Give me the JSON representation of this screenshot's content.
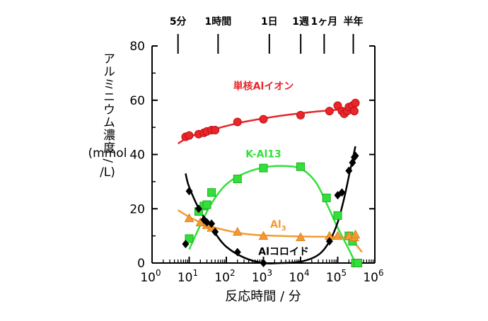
{
  "chart_data": {
    "type": "scatter",
    "xlabel": "反応時間 / 分",
    "ylabel_lines": [
      "アルミニウム濃度 /",
      "(mmol",
      "/L)"
    ],
    "x_scale": "log",
    "xlim": [
      1,
      1000000
    ],
    "ylim": [
      0,
      80
    ],
    "y_ticks": [
      "0",
      "20",
      "40",
      "60",
      "80"
    ],
    "x_ticks": [
      {
        "base": "10",
        "exp": "0"
      },
      {
        "base": "10",
        "exp": "1"
      },
      {
        "base": "10",
        "exp": "2"
      },
      {
        "base": "10",
        "exp": "3"
      },
      {
        "base": "10",
        "exp": "4"
      },
      {
        "base": "10",
        "exp": "5"
      },
      {
        "base": "10",
        "exp": "6"
      }
    ],
    "top_markers": [
      {
        "label": "5分",
        "x": 5
      },
      {
        "label": "1時間",
        "x": 60
      },
      {
        "label": "1日",
        "x": 1440
      },
      {
        "label": "1週",
        "x": 10080
      },
      {
        "label": "1ヶ月",
        "x": 43200
      },
      {
        "label": "半年",
        "x": 262800
      }
    ],
    "series": [
      {
        "name": "単核Alイオン",
        "color": "#e8262b",
        "marker": "circle",
        "label_at": {
          "x": 1000,
          "y": 64
        },
        "points": [
          [
            8,
            46.5
          ],
          [
            10,
            47
          ],
          [
            18,
            47.5
          ],
          [
            25,
            48
          ],
          [
            30,
            48.5
          ],
          [
            40,
            49
          ],
          [
            50,
            49
          ],
          [
            200,
            52
          ],
          [
            1000,
            53
          ],
          [
            10000,
            54.5
          ],
          [
            60000,
            56
          ],
          [
            100000,
            58
          ],
          [
            130000,
            56
          ],
          [
            150000,
            55
          ],
          [
            180000,
            56
          ],
          [
            200000,
            57.5
          ],
          [
            250000,
            58
          ],
          [
            280000,
            56
          ],
          [
            300000,
            59
          ]
        ],
        "curve": [
          [
            5,
            44
          ],
          [
            10,
            46.5
          ],
          [
            30,
            48.5
          ],
          [
            100,
            50.5
          ],
          [
            300,
            52
          ],
          [
            1000,
            53.3
          ],
          [
            3000,
            54.3
          ],
          [
            10000,
            55.2
          ],
          [
            30000,
            55.9
          ],
          [
            100000,
            56.5
          ],
          [
            300000,
            57
          ]
        ]
      },
      {
        "name": "K-Al13",
        "color": "#33e03a",
        "marker": "square",
        "label_at": {
          "x": 1000,
          "y": 39
        },
        "points": [
          [
            10,
            9
          ],
          [
            18,
            19
          ],
          [
            25,
            21
          ],
          [
            30,
            21.5
          ],
          [
            40,
            26
          ],
          [
            200,
            31
          ],
          [
            1000,
            35
          ],
          [
            10000,
            35.5
          ],
          [
            50000,
            24
          ],
          [
            100000,
            17.5
          ],
          [
            200000,
            10
          ],
          [
            250000,
            8
          ],
          [
            300000,
            0
          ],
          [
            350000,
            0
          ]
        ],
        "curve": [
          [
            10,
            5
          ],
          [
            20,
            14
          ],
          [
            40,
            22
          ],
          [
            100,
            29
          ],
          [
            300,
            33
          ],
          [
            1000,
            35.2
          ],
          [
            3000,
            35.8
          ],
          [
            10000,
            34.8
          ],
          [
            25000,
            30
          ],
          [
            50000,
            22
          ],
          [
            100000,
            13
          ],
          [
            200000,
            5
          ],
          [
            300000,
            0
          ]
        ]
      },
      {
        "name_base": "Al",
        "name_sub": "3",
        "color": "#f59a32",
        "marker": "triangle",
        "label_at": {
          "x": 2500,
          "y": 13
        },
        "points": [
          [
            10,
            16.5
          ],
          [
            20,
            15
          ],
          [
            30,
            14
          ],
          [
            40,
            13
          ],
          [
            200,
            11.5
          ],
          [
            1000,
            10
          ],
          [
            10000,
            9.5
          ],
          [
            60000,
            10
          ],
          [
            100000,
            10
          ],
          [
            200000,
            10
          ],
          [
            280000,
            9.5
          ],
          [
            300000,
            10.5
          ]
        ],
        "curve": [
          [
            5,
            19.5
          ],
          [
            10,
            17
          ],
          [
            30,
            14
          ],
          [
            100,
            12
          ],
          [
            300,
            10.8
          ],
          [
            1000,
            10.2
          ],
          [
            10000,
            9.8
          ],
          [
            100000,
            9.6
          ],
          [
            200000,
            9
          ],
          [
            300000,
            7
          ],
          [
            450000,
            4
          ]
        ]
      },
      {
        "name": "Alコロイド",
        "color": "#000000",
        "marker": "diamond",
        "label_at": {
          "x": 3500,
          "y": 3
        },
        "points": [
          [
            8,
            7
          ],
          [
            10,
            26.5
          ],
          [
            18,
            20
          ],
          [
            25,
            16
          ],
          [
            30,
            15
          ],
          [
            40,
            14.5
          ],
          [
            50,
            11.5
          ],
          [
            200,
            4
          ],
          [
            1000,
            0
          ],
          [
            60000,
            8
          ],
          [
            100000,
            25
          ],
          [
            130000,
            26
          ],
          [
            200000,
            34
          ],
          [
            250000,
            37
          ],
          [
            280000,
            39
          ],
          [
            300000,
            39.5
          ]
        ],
        "curve": [
          [
            8,
            33
          ],
          [
            10,
            28
          ],
          [
            20,
            19
          ],
          [
            50,
            11
          ],
          [
            100,
            6
          ],
          [
            300,
            2
          ],
          [
            1000,
            0
          ],
          [
            3000,
            0
          ],
          [
            10000,
            0.5
          ],
          [
            30000,
            3
          ],
          [
            60000,
            8
          ],
          [
            100000,
            15
          ],
          [
            150000,
            24
          ],
          [
            200000,
            32
          ],
          [
            250000,
            38
          ],
          [
            300000,
            43
          ]
        ]
      }
    ]
  }
}
